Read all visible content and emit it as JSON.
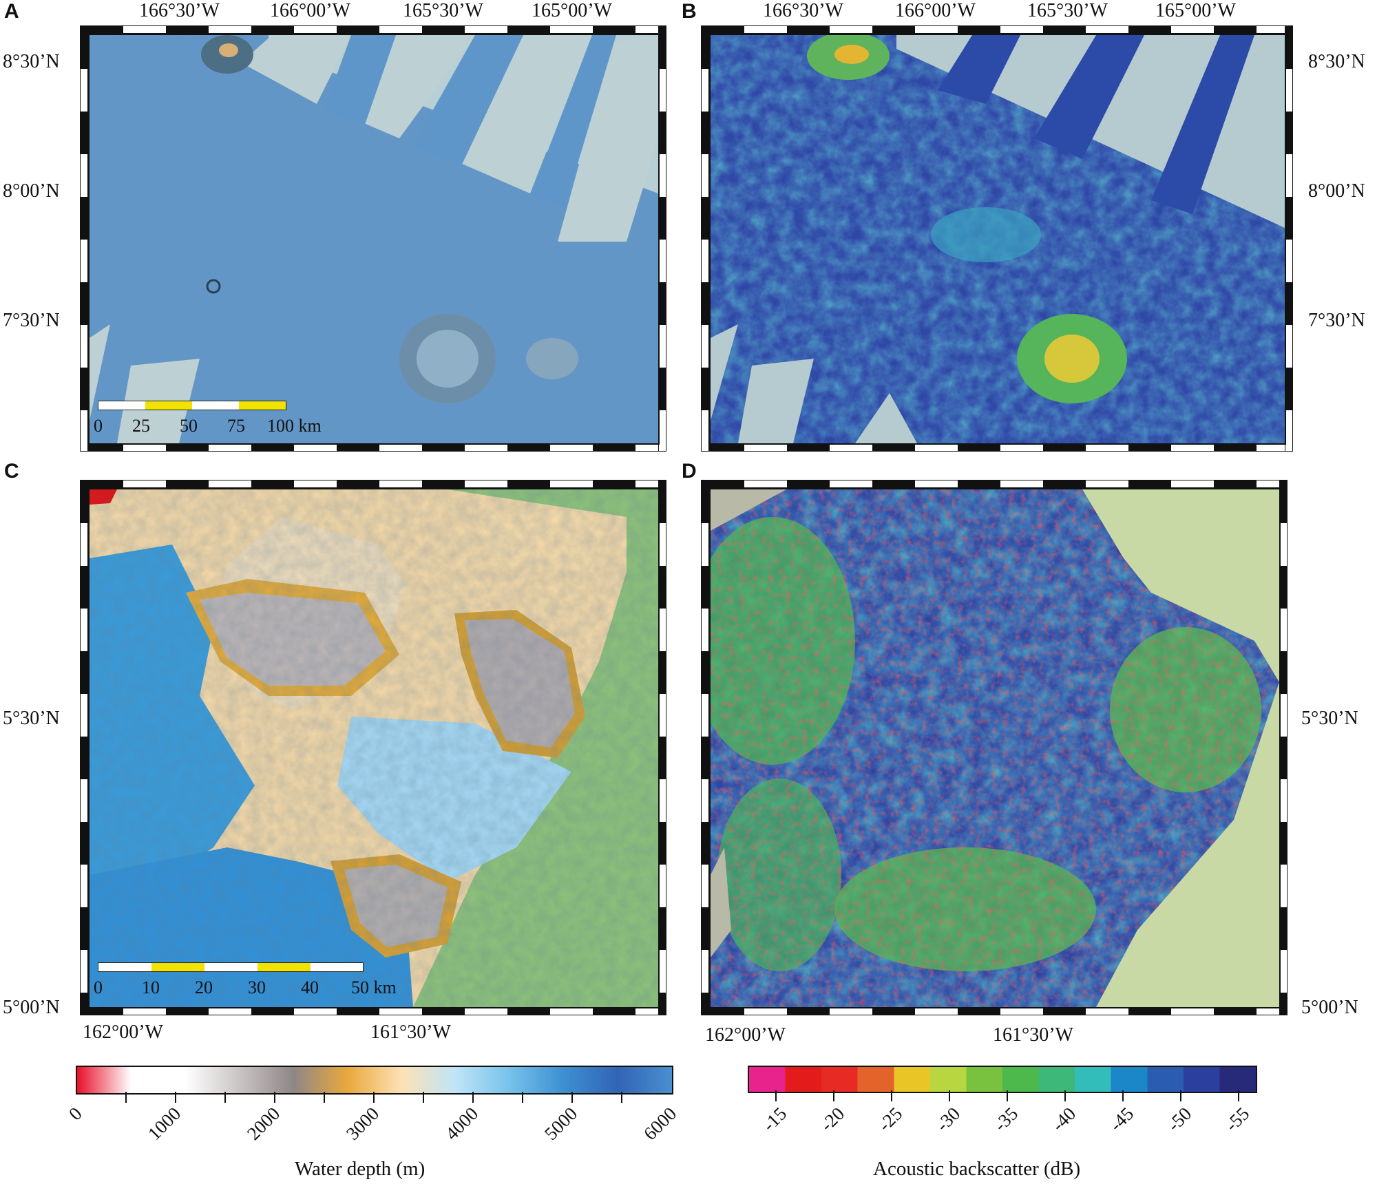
{
  "panels": {
    "a": {
      "letter": "A",
      "lon_labels": [
        "166°30’W",
        "166°00’W",
        "165°30’W",
        "165°00’W"
      ],
      "lat_labels": [
        "8°30’N",
        "8°00’N",
        "7°30’N"
      ],
      "scale_labels": [
        "0",
        "25",
        "50",
        "75",
        "100 km"
      ]
    },
    "b": {
      "letter": "B",
      "lon_labels": [
        "166°30’W",
        "166°00’W",
        "165°30’W",
        "165°00’W"
      ],
      "lat_labels": [
        "8°30’N",
        "8°00’N",
        "7°30’N"
      ]
    },
    "c": {
      "letter": "C",
      "lon_labels": [
        "162°00’W",
        "161°30’W"
      ],
      "lat_labels": [
        "5°30’N",
        "5°00’N"
      ],
      "scale_labels": [
        "0",
        "10",
        "20",
        "30",
        "40",
        "50 km"
      ]
    },
    "d": {
      "letter": "D",
      "lon_labels": [
        "162°00’W",
        "161°30’W"
      ],
      "lat_labels": [
        "5°30’N",
        "5°00’N"
      ]
    }
  },
  "colorbars": {
    "depth": {
      "title": "Water depth (m)",
      "ticks": [
        "0",
        "1000",
        "2000",
        "3000",
        "4000",
        "5000",
        "6000"
      ],
      "range": [
        0,
        6000
      ],
      "colors": [
        "#e8102a",
        "#ffffff",
        "#ffffff",
        "#c9c4c4",
        "#8f8686",
        "#e9a93c",
        "#fde1b4",
        "#bfe4f7",
        "#76c2ec",
        "#3d8fd2",
        "#3264b6",
        "#4a8fd0"
      ]
    },
    "backscatter": {
      "title": "Acoustic backscatter (dB)",
      "ticks": [
        "-15",
        "-20",
        "-25",
        "-30",
        "-35",
        "-40",
        "-45",
        "-50",
        "-55"
      ],
      "range": [
        -15,
        -55
      ],
      "colors": [
        "#e8248c",
        "#e31b1b",
        "#e82a25",
        "#e4632a",
        "#e9c625",
        "#b7d640",
        "#78c240",
        "#4db84c",
        "#3db878",
        "#32bdbb",
        "#1c87c8",
        "#2a5cb2",
        "#2b3f9e",
        "#262a78"
      ]
    }
  }
}
